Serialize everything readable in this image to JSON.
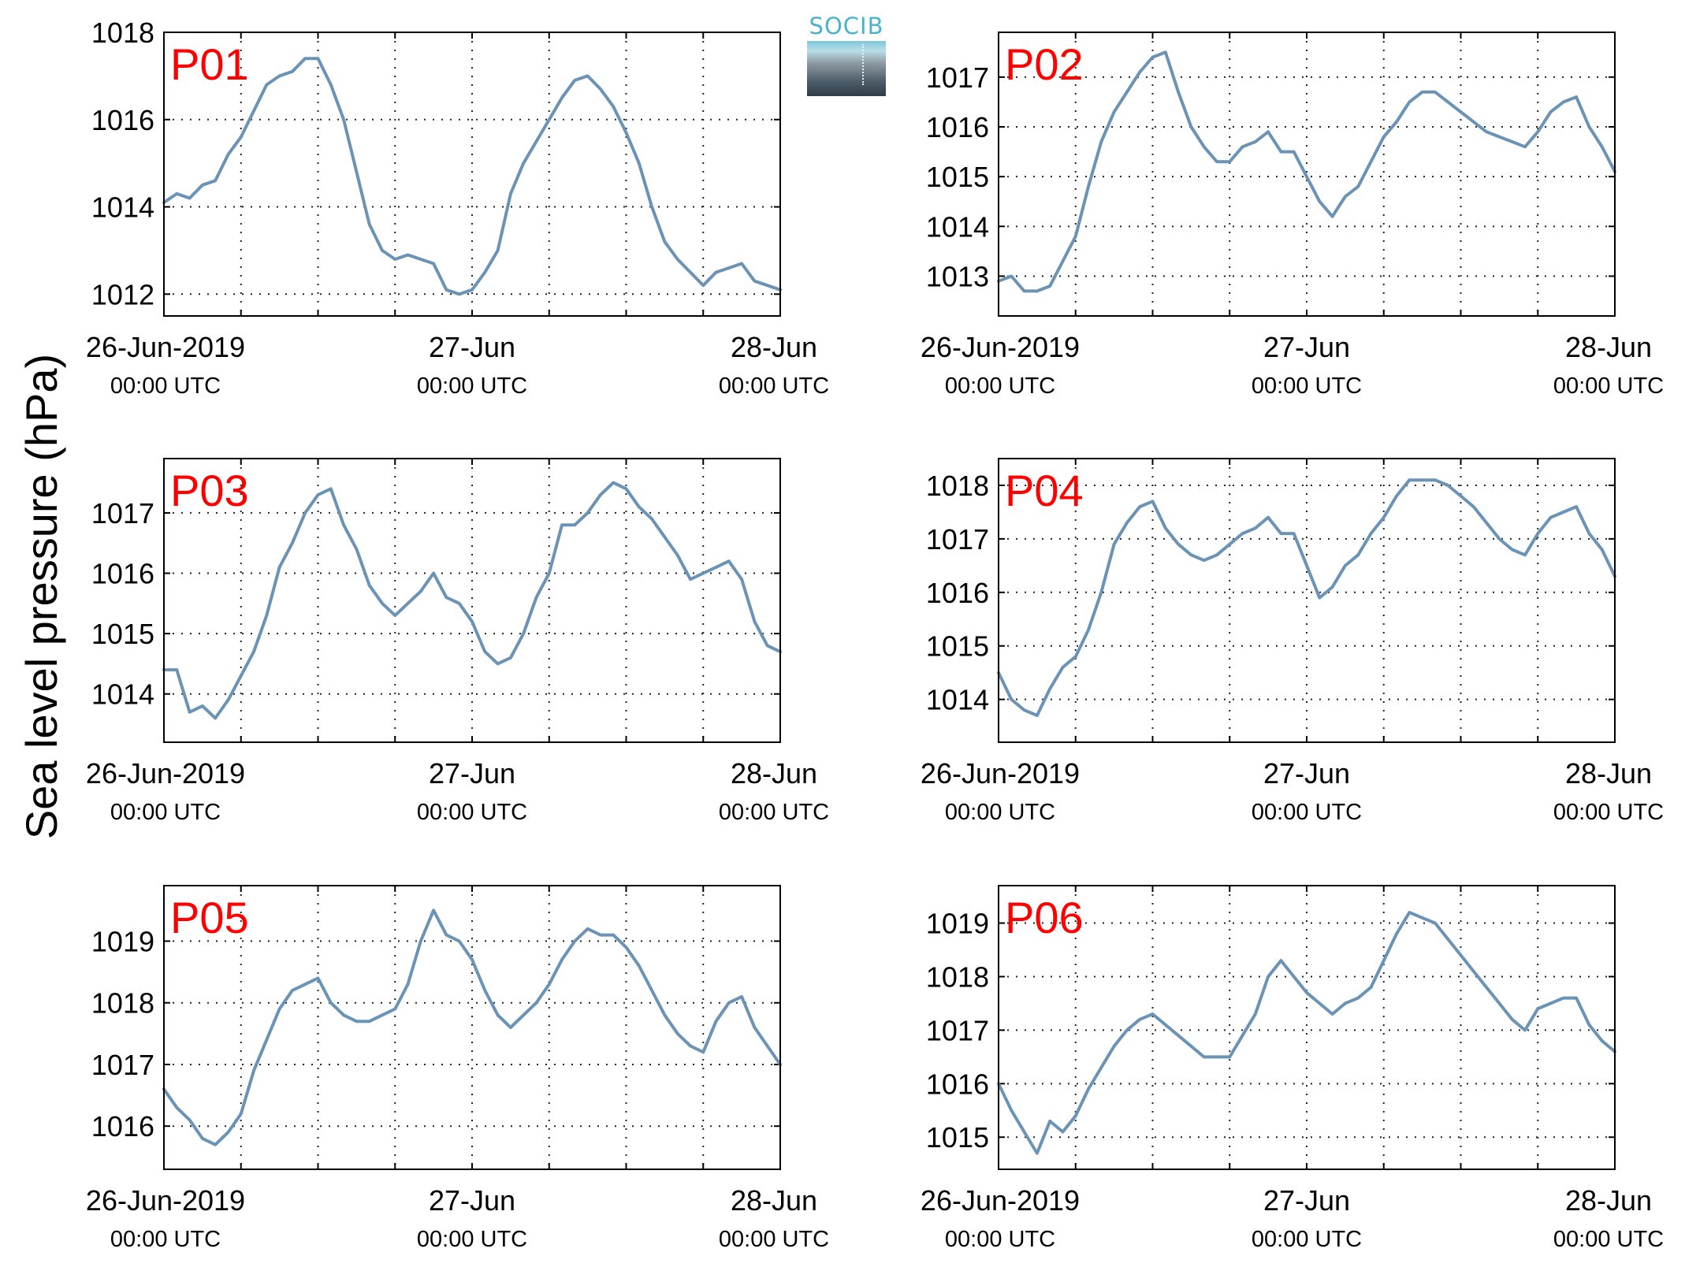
{
  "figure": {
    "ylabel": "Sea level pressure (hPa)",
    "logo_text": "SOCIB",
    "line_color": "#6a93b6",
    "label_color": "#ff0000"
  },
  "chart_data": [
    {
      "type": "line",
      "label": "P01",
      "xlim": [
        0,
        48
      ],
      "ylim": [
        1011.5,
        1018
      ],
      "yticks": [
        1012,
        1014,
        1016,
        1018
      ],
      "xticks": [
        0,
        24,
        48
      ],
      "xticklabels": [
        "26-Jun-2019",
        "27-Jun",
        "28-Jun"
      ],
      "xticksublabels": [
        "00:00 UTC",
        "00:00 UTC",
        "00:00 UTC"
      ],
      "grid": true,
      "x": [
        0,
        1,
        2,
        3,
        4,
        5,
        6,
        7,
        8,
        9,
        10,
        11,
        12,
        13,
        14,
        15,
        16,
        17,
        18,
        19,
        20,
        21,
        22,
        23,
        24,
        25,
        26,
        27,
        28,
        29,
        30,
        31,
        32,
        33,
        34,
        35,
        36,
        37,
        38,
        39,
        40,
        41,
        42,
        43,
        44,
        45,
        46,
        47,
        48
      ],
      "y": [
        1014.1,
        1014.3,
        1014.2,
        1014.5,
        1014.6,
        1015.2,
        1015.6,
        1016.2,
        1016.8,
        1017.0,
        1017.1,
        1017.4,
        1017.4,
        1016.8,
        1016.0,
        1014.8,
        1013.6,
        1013.0,
        1012.8,
        1012.9,
        1012.8,
        1012.7,
        1012.1,
        1012.0,
        1012.1,
        1012.5,
        1013.0,
        1014.3,
        1015.0,
        1015.5,
        1016.0,
        1016.5,
        1016.9,
        1017.0,
        1016.7,
        1016.3,
        1015.7,
        1015.0,
        1014.0,
        1013.2,
        1012.8,
        1012.5,
        1012.2,
        1012.5,
        1012.6,
        1012.7,
        1012.3,
        1012.2,
        1012.1
      ]
    },
    {
      "type": "line",
      "label": "P02",
      "xlim": [
        0,
        48
      ],
      "ylim": [
        1012.2,
        1017.9
      ],
      "yticks": [
        1013,
        1014,
        1015,
        1016,
        1017
      ],
      "xticks": [
        0,
        24,
        48
      ],
      "xticklabels": [
        "26-Jun-2019",
        "27-Jun",
        "28-Jun"
      ],
      "xticksublabels": [
        "00:00 UTC",
        "00:00 UTC",
        "00:00 UTC"
      ],
      "grid": true,
      "x": [
        0,
        1,
        2,
        3,
        4,
        5,
        6,
        7,
        8,
        9,
        10,
        11,
        12,
        13,
        14,
        15,
        16,
        17,
        18,
        19,
        20,
        21,
        22,
        23,
        24,
        25,
        26,
        27,
        28,
        29,
        30,
        31,
        32,
        33,
        34,
        35,
        36,
        37,
        38,
        39,
        40,
        41,
        42,
        43,
        44,
        45,
        46,
        47,
        48
      ],
      "y": [
        1012.9,
        1013.0,
        1012.7,
        1012.7,
        1012.8,
        1013.3,
        1013.8,
        1014.8,
        1015.7,
        1016.3,
        1016.7,
        1017.1,
        1017.4,
        1017.5,
        1016.7,
        1016.0,
        1015.6,
        1015.3,
        1015.3,
        1015.6,
        1015.7,
        1015.9,
        1015.5,
        1015.5,
        1015.0,
        1014.5,
        1014.2,
        1014.6,
        1014.8,
        1015.3,
        1015.8,
        1016.1,
        1016.5,
        1016.7,
        1016.7,
        1016.5,
        1016.3,
        1016.1,
        1015.9,
        1015.8,
        1015.7,
        1015.6,
        1015.9,
        1016.3,
        1016.5,
        1016.6,
        1016.0,
        1015.6,
        1015.1
      ]
    },
    {
      "type": "line",
      "label": "P03",
      "xlim": [
        0,
        48
      ],
      "ylim": [
        1013.2,
        1017.9
      ],
      "yticks": [
        1014,
        1015,
        1016,
        1017
      ],
      "xticks": [
        0,
        24,
        48
      ],
      "xticklabels": [
        "26-Jun-2019",
        "27-Jun",
        "28-Jun"
      ],
      "xticksublabels": [
        "00:00 UTC",
        "00:00 UTC",
        "00:00 UTC"
      ],
      "grid": true,
      "x": [
        0,
        1,
        2,
        3,
        4,
        5,
        6,
        7,
        8,
        9,
        10,
        11,
        12,
        13,
        14,
        15,
        16,
        17,
        18,
        19,
        20,
        21,
        22,
        23,
        24,
        25,
        26,
        27,
        28,
        29,
        30,
        31,
        32,
        33,
        34,
        35,
        36,
        37,
        38,
        39,
        40,
        41,
        42,
        43,
        44,
        45,
        46,
        47,
        48
      ],
      "y": [
        1014.4,
        1014.4,
        1013.7,
        1013.8,
        1013.6,
        1013.9,
        1014.3,
        1014.7,
        1015.3,
        1016.1,
        1016.5,
        1017.0,
        1017.3,
        1017.4,
        1016.8,
        1016.4,
        1015.8,
        1015.5,
        1015.3,
        1015.5,
        1015.7,
        1016.0,
        1015.6,
        1015.5,
        1015.2,
        1014.7,
        1014.5,
        1014.6,
        1015.0,
        1015.6,
        1016.0,
        1016.8,
        1016.8,
        1017.0,
        1017.3,
        1017.5,
        1017.4,
        1017.1,
        1016.9,
        1016.6,
        1016.3,
        1015.9,
        1016.0,
        1016.1,
        1016.2,
        1015.9,
        1015.2,
        1014.8,
        1014.7
      ]
    },
    {
      "type": "line",
      "label": "P04",
      "xlim": [
        0,
        48
      ],
      "ylim": [
        1013.2,
        1018.5
      ],
      "yticks": [
        1014,
        1015,
        1016,
        1017,
        1018
      ],
      "xticks": [
        0,
        24,
        48
      ],
      "xticklabels": [
        "26-Jun-2019",
        "27-Jun",
        "28-Jun"
      ],
      "xticksublabels": [
        "00:00 UTC",
        "00:00 UTC",
        "00:00 UTC"
      ],
      "grid": true,
      "x": [
        0,
        1,
        2,
        3,
        4,
        5,
        6,
        7,
        8,
        9,
        10,
        11,
        12,
        13,
        14,
        15,
        16,
        17,
        18,
        19,
        20,
        21,
        22,
        23,
        24,
        25,
        26,
        27,
        28,
        29,
        30,
        31,
        32,
        33,
        34,
        35,
        36,
        37,
        38,
        39,
        40,
        41,
        42,
        43,
        44,
        45,
        46,
        47,
        48
      ],
      "y": [
        1014.5,
        1014.0,
        1013.8,
        1013.7,
        1014.2,
        1014.6,
        1014.8,
        1015.3,
        1016.0,
        1016.9,
        1017.3,
        1017.6,
        1017.7,
        1017.2,
        1016.9,
        1016.7,
        1016.6,
        1016.7,
        1016.9,
        1017.1,
        1017.2,
        1017.4,
        1017.1,
        1017.1,
        1016.5,
        1015.9,
        1016.1,
        1016.5,
        1016.7,
        1017.1,
        1017.4,
        1017.8,
        1018.1,
        1018.1,
        1018.1,
        1018.0,
        1017.8,
        1017.6,
        1017.3,
        1017.0,
        1016.8,
        1016.7,
        1017.1,
        1017.4,
        1017.5,
        1017.6,
        1017.1,
        1016.8,
        1016.3
      ]
    },
    {
      "type": "line",
      "label": "P05",
      "xlim": [
        0,
        48
      ],
      "ylim": [
        1015.3,
        1019.9
      ],
      "yticks": [
        1016,
        1017,
        1018,
        1019
      ],
      "xticks": [
        0,
        24,
        48
      ],
      "xticklabels": [
        "26-Jun-2019",
        "27-Jun",
        "28-Jun"
      ],
      "xticksublabels": [
        "00:00 UTC",
        "00:00 UTC",
        "00:00 UTC"
      ],
      "grid": true,
      "x": [
        0,
        1,
        2,
        3,
        4,
        5,
        6,
        7,
        8,
        9,
        10,
        11,
        12,
        13,
        14,
        15,
        16,
        17,
        18,
        19,
        20,
        21,
        22,
        23,
        24,
        25,
        26,
        27,
        28,
        29,
        30,
        31,
        32,
        33,
        34,
        35,
        36,
        37,
        38,
        39,
        40,
        41,
        42,
        43,
        44,
        45,
        46,
        47,
        48
      ],
      "y": [
        1016.6,
        1016.3,
        1016.1,
        1015.8,
        1015.7,
        1015.9,
        1016.2,
        1016.9,
        1017.4,
        1017.9,
        1018.2,
        1018.3,
        1018.4,
        1018.0,
        1017.8,
        1017.7,
        1017.7,
        1017.8,
        1017.9,
        1018.3,
        1019.0,
        1019.5,
        1019.1,
        1019.0,
        1018.7,
        1018.2,
        1017.8,
        1017.6,
        1017.8,
        1018.0,
        1018.3,
        1018.7,
        1019.0,
        1019.2,
        1019.1,
        1019.1,
        1018.9,
        1018.6,
        1018.2,
        1017.8,
        1017.5,
        1017.3,
        1017.2,
        1017.7,
        1018.0,
        1018.1,
        1017.6,
        1017.3,
        1017.0
      ]
    },
    {
      "type": "line",
      "label": "P06",
      "xlim": [
        0,
        48
      ],
      "ylim": [
        1014.4,
        1019.7
      ],
      "yticks": [
        1015,
        1016,
        1017,
        1018,
        1019
      ],
      "xticks": [
        0,
        24,
        48
      ],
      "xticklabels": [
        "26-Jun-2019",
        "27-Jun",
        "28-Jun"
      ],
      "xticksublabels": [
        "00:00 UTC",
        "00:00 UTC",
        "00:00 UTC"
      ],
      "grid": true,
      "x": [
        0,
        1,
        2,
        3,
        4,
        5,
        6,
        7,
        8,
        9,
        10,
        11,
        12,
        13,
        14,
        15,
        16,
        17,
        18,
        19,
        20,
        21,
        22,
        23,
        24,
        25,
        26,
        27,
        28,
        29,
        30,
        31,
        32,
        33,
        34,
        35,
        36,
        37,
        38,
        39,
        40,
        41,
        42,
        43,
        44,
        45,
        46,
        47,
        48
      ],
      "y": [
        1016.0,
        1015.5,
        1015.1,
        1014.7,
        1015.3,
        1015.1,
        1015.4,
        1015.9,
        1016.3,
        1016.7,
        1017.0,
        1017.2,
        1017.3,
        1017.1,
        1016.9,
        1016.7,
        1016.5,
        1016.5,
        1016.5,
        1016.9,
        1017.3,
        1018.0,
        1018.3,
        1018.0,
        1017.7,
        1017.5,
        1017.3,
        1017.5,
        1017.6,
        1017.8,
        1018.3,
        1018.8,
        1019.2,
        1019.1,
        1019.0,
        1018.7,
        1018.4,
        1018.1,
        1017.8,
        1017.5,
        1017.2,
        1017.0,
        1017.4,
        1017.5,
        1017.6,
        1017.6,
        1017.1,
        1016.8,
        1016.6
      ]
    }
  ]
}
